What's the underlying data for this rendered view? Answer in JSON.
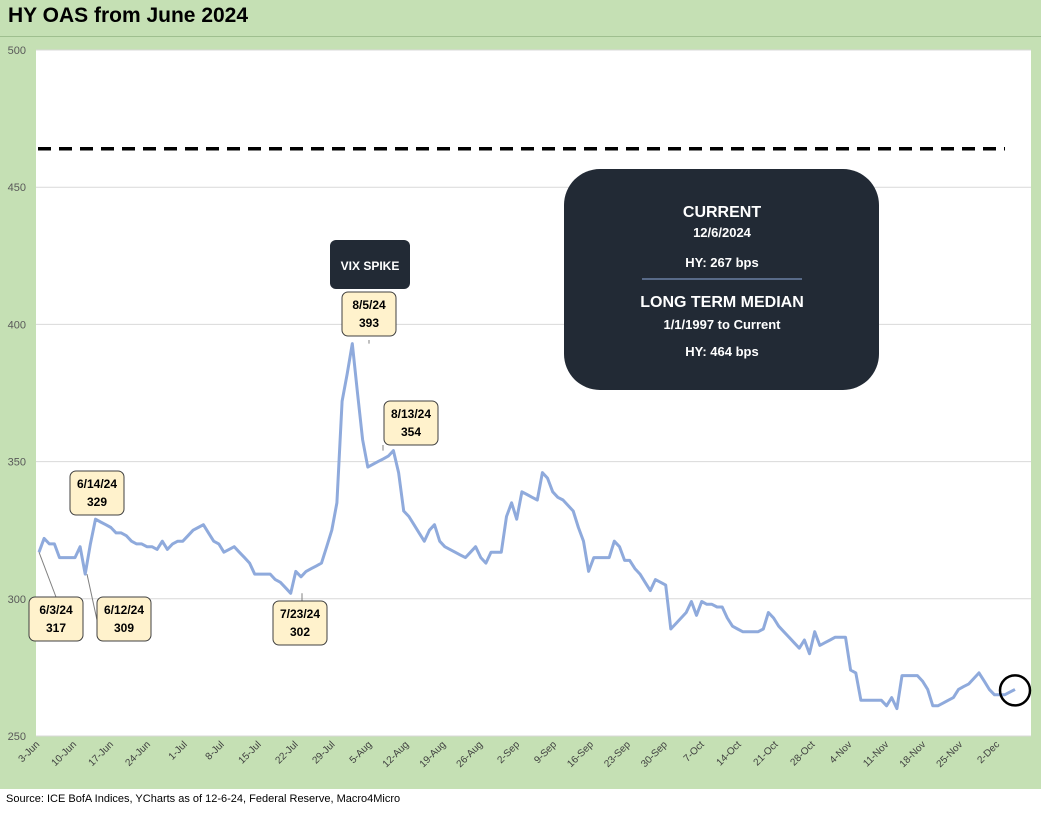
{
  "title": "HY OAS from June 2024",
  "source": "Source: ICE BofA Indices, YCharts as of 12-6-24, Federal Reserve, Macro4Micro",
  "colors": {
    "line": "#8faadc",
    "background": "#c5e0b4",
    "panel": "#222a35",
    "callout": "#fff2cc",
    "median_line": "#000000"
  },
  "current_box": {
    "title": "CURRENT",
    "date": "12/6/2024",
    "hy_value": "HY: 267 bps",
    "median_title": "LONG TERM MEDIAN",
    "median_range": "1/1/1997 to Current",
    "median_value": "HY: 464 bps"
  },
  "vix_label": "VIX SPIKE",
  "chart_data": {
    "type": "line",
    "title": "HY OAS from June 2024",
    "ylim": [
      250,
      500
    ],
    "yticks": [
      250,
      300,
      350,
      400,
      450,
      500
    ],
    "grid": true,
    "median_value": 464,
    "xtick_labels": [
      "3-Jun",
      "10-Jun",
      "17-Jun",
      "24-Jun",
      "1-Jul",
      "8-Jul",
      "15-Jul",
      "22-Jul",
      "29-Jul",
      "5-Aug",
      "12-Aug",
      "19-Aug",
      "26-Aug",
      "2-Sep",
      "9-Sep",
      "16-Sep",
      "23-Sep",
      "30-Sep",
      "7-Oct",
      "14-Oct",
      "21-Oct",
      "28-Oct",
      "4-Nov",
      "11-Nov",
      "18-Nov",
      "25-Nov",
      "2-Dec"
    ],
    "series": [
      {
        "values": [
          317,
          322,
          320,
          320,
          315,
          315,
          315,
          315,
          319,
          309,
          320,
          329,
          328,
          327,
          326,
          324,
          324,
          323,
          321,
          320,
          320,
          319,
          319,
          318,
          321,
          318,
          320,
          321,
          321,
          323,
          325,
          326,
          327,
          324,
          321,
          320,
          317,
          318,
          319,
          317,
          315,
          313,
          309,
          309,
          309,
          309,
          307,
          306,
          304,
          302,
          310,
          308,
          310,
          311,
          312,
          313,
          319,
          325,
          335,
          372,
          382,
          393,
          375,
          358,
          348,
          349,
          350,
          351,
          352,
          354,
          346,
          332,
          330,
          327,
          324,
          321,
          325,
          327,
          321,
          319,
          318,
          317,
          316,
          315,
          317,
          319,
          315,
          313,
          317,
          317,
          317,
          330,
          335,
          329,
          339,
          338,
          337,
          336,
          346,
          344,
          339,
          337,
          336,
          334,
          332,
          326,
          321,
          310,
          315,
          315,
          315,
          315,
          321,
          319,
          314,
          314,
          311,
          309,
          306,
          303,
          307,
          306,
          305,
          289,
          291,
          293,
          295,
          299,
          294,
          299,
          298,
          298,
          297,
          297,
          293,
          290,
          289,
          288,
          288,
          288,
          288,
          289,
          295,
          293,
          290,
          288,
          286,
          284,
          282,
          285,
          280,
          288,
          283,
          284,
          285,
          286,
          286,
          286,
          274,
          273,
          263,
          263,
          263,
          263,
          263,
          261,
          264,
          260,
          272,
          272,
          272,
          272,
          270,
          267,
          261,
          261,
          262,
          263,
          264,
          267,
          268,
          269,
          271,
          273,
          270,
          267,
          265,
          265,
          265,
          266,
          267
        ]
      }
    ],
    "annotations": [
      {
        "date": "6/3/24",
        "value": 317
      },
      {
        "date": "6/14/24",
        "value": 329
      },
      {
        "date": "6/12/24",
        "value": 309
      },
      {
        "date": "7/23/24",
        "value": 302
      },
      {
        "date": "8/5/24",
        "value": 393
      },
      {
        "date": "8/13/24",
        "value": 354
      }
    ]
  }
}
